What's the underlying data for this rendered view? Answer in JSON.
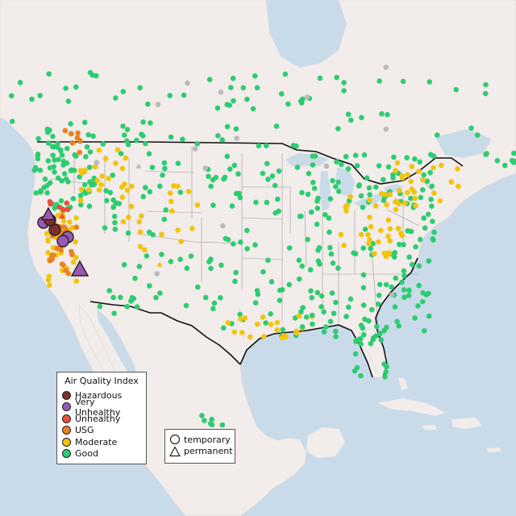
{
  "legend": {
    "title": "Air Quality Index",
    "categories": [
      {
        "label": "Hazardous",
        "color": "#7e2f2f"
      },
      {
        "label": "Very Unhealthy",
        "color": "#9b59b6"
      },
      {
        "label": "Unhealthy",
        "color": "#e8523c"
      },
      {
        "label": "USG",
        "color": "#e9821f"
      },
      {
        "label": "Moderate",
        "color": "#f1c40f"
      },
      {
        "label": "Good",
        "color": "#2ecc71"
      }
    ]
  },
  "type_legend": {
    "items": [
      {
        "label": "temporary",
        "shape": "circle"
      },
      {
        "label": "permanent",
        "shape": "triangle"
      }
    ]
  },
  "colors": {
    "ocean": "#c9dbe9",
    "land": "#f2ecea",
    "border": "#111111",
    "no_data": "#bbbbbb"
  }
}
